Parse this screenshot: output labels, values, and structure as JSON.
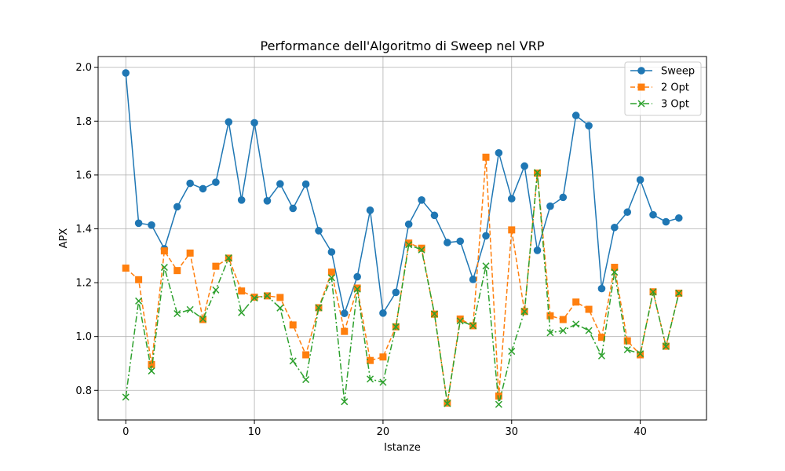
{
  "chart_data": {
    "type": "line",
    "title": "Performance dell'Algoritmo di Sweep nel VRP",
    "xlabel": "Istanze",
    "ylabel": "APX",
    "xlim": [
      -2.15,
      45.15
    ],
    "ylim": [
      0.69,
      2.04
    ],
    "xticks": [
      0,
      10,
      20,
      30,
      40
    ],
    "yticks": [
      0.8,
      1.0,
      1.2,
      1.4,
      1.6,
      1.8,
      2.0
    ],
    "ytick_labels": [
      "0.8",
      "1.0",
      "1.2",
      "1.4",
      "1.6",
      "1.8",
      "2.0"
    ],
    "grid": true,
    "legend_position": "top-right",
    "x": [
      0,
      1,
      2,
      3,
      4,
      5,
      6,
      7,
      8,
      9,
      10,
      11,
      12,
      13,
      14,
      15,
      16,
      17,
      18,
      19,
      20,
      21,
      22,
      23,
      24,
      25,
      26,
      27,
      28,
      29,
      30,
      31,
      32,
      33,
      34,
      35,
      36,
      37,
      38,
      39,
      40,
      41,
      42,
      43
    ],
    "series": [
      {
        "name": "Sweep",
        "color": "#1f77b4",
        "marker": "circle",
        "linestyle": "solid",
        "values": [
          1.979,
          1.421,
          1.414,
          1.326,
          1.482,
          1.569,
          1.549,
          1.573,
          1.797,
          1.507,
          1.794,
          1.504,
          1.567,
          1.476,
          1.566,
          1.393,
          1.314,
          1.086,
          1.222,
          1.469,
          1.087,
          1.164,
          1.417,
          1.507,
          1.45,
          1.349,
          1.354,
          1.212,
          1.374,
          1.682,
          1.512,
          1.633,
          1.32,
          1.484,
          1.517,
          1.821,
          1.783,
          1.178,
          1.405,
          1.462,
          1.582,
          1.452,
          1.426,
          1.44
        ]
      },
      {
        "name": "2 Opt",
        "color": "#ff7f0e",
        "marker": "square",
        "linestyle": "dashed",
        "values": [
          1.254,
          1.211,
          0.896,
          1.318,
          1.245,
          1.31,
          1.063,
          1.261,
          1.291,
          1.169,
          1.146,
          1.151,
          1.145,
          1.043,
          0.932,
          1.107,
          1.239,
          1.019,
          1.18,
          0.911,
          0.924,
          1.036,
          1.347,
          1.328,
          1.083,
          0.753,
          1.065,
          1.04,
          1.666,
          0.779,
          1.396,
          1.093,
          1.607,
          1.077,
          1.063,
          1.128,
          1.101,
          0.997,
          1.257,
          0.984,
          0.932,
          1.166,
          0.964,
          1.161
        ]
      },
      {
        "name": "3 Opt",
        "color": "#2ca02c",
        "marker": "x",
        "linestyle": "dashdot",
        "values": [
          0.775,
          1.132,
          0.872,
          1.257,
          1.085,
          1.1,
          1.065,
          1.173,
          1.292,
          1.089,
          1.143,
          1.151,
          1.106,
          0.909,
          0.84,
          1.107,
          1.218,
          0.758,
          1.176,
          0.842,
          0.83,
          1.036,
          1.341,
          1.322,
          1.084,
          0.751,
          1.058,
          1.04,
          1.262,
          0.748,
          0.945,
          1.093,
          1.609,
          1.014,
          1.022,
          1.046,
          1.022,
          0.928,
          1.239,
          0.951,
          0.936,
          1.166,
          0.963,
          1.161
        ]
      }
    ]
  }
}
